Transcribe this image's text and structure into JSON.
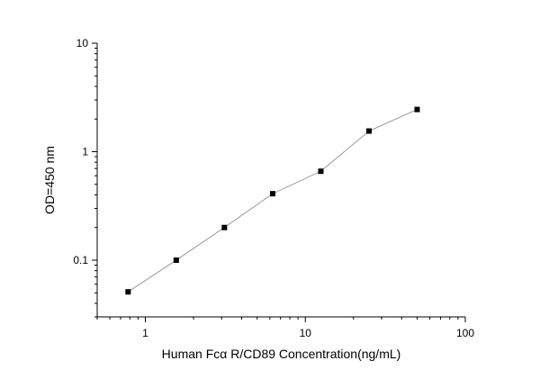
{
  "chart_data": {
    "type": "line",
    "title": "",
    "xlabel": "Human Fcα R/CD89 Concentration(ng/mL)",
    "ylabel": "OD=450 nm",
    "x_scale": "log",
    "y_scale": "log",
    "xlim": [
      0.5,
      100
    ],
    "ylim": [
      0.03,
      10
    ],
    "x_ticks": [
      1,
      10,
      100
    ],
    "y_ticks": [
      0.1,
      1,
      10
    ],
    "x_tick_labels": [
      "1",
      "10",
      "100"
    ],
    "y_tick_labels": [
      "0.1",
      "1",
      "10"
    ],
    "grid": false,
    "legend": "none",
    "line_color": "#808080",
    "marker_color": "#000000",
    "marker_shape": "square",
    "series": [
      {
        "x": [
          0.78,
          1.56,
          3.12,
          6.25,
          12.5,
          25,
          50
        ],
        "y": [
          0.051,
          0.1,
          0.2,
          0.41,
          0.66,
          1.55,
          2.45
        ]
      }
    ]
  }
}
